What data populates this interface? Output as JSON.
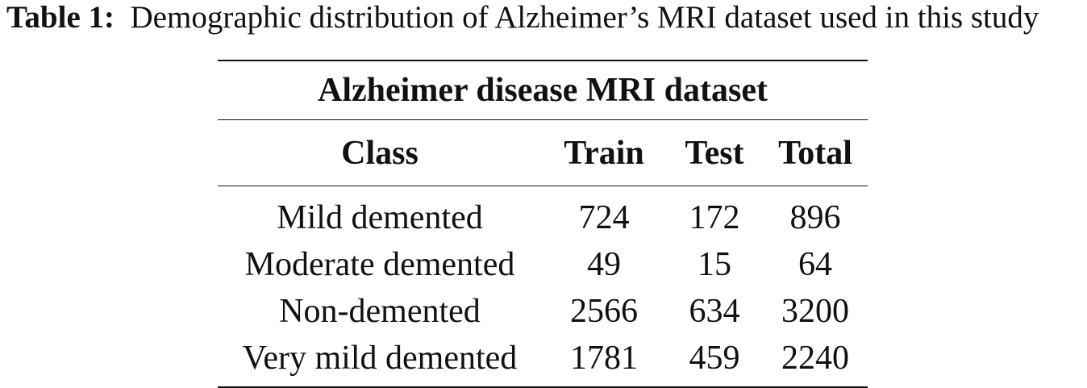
{
  "caption": {
    "label": "Table 1:",
    "text": "Demographic distribution of Alzheimer’s MRI dataset used in this study"
  },
  "table": {
    "spanning_header": "Alzheimer disease MRI dataset",
    "columns": [
      "Class",
      "Train",
      "Test",
      "Total"
    ],
    "rows": [
      [
        "Mild demented",
        "724",
        "172",
        "896"
      ],
      [
        "Moderate demented",
        "49",
        "15",
        "64"
      ],
      [
        "Non-demented",
        "2566",
        "634",
        "3200"
      ],
      [
        "Very mild demented",
        "1781",
        "459",
        "2240"
      ]
    ]
  }
}
